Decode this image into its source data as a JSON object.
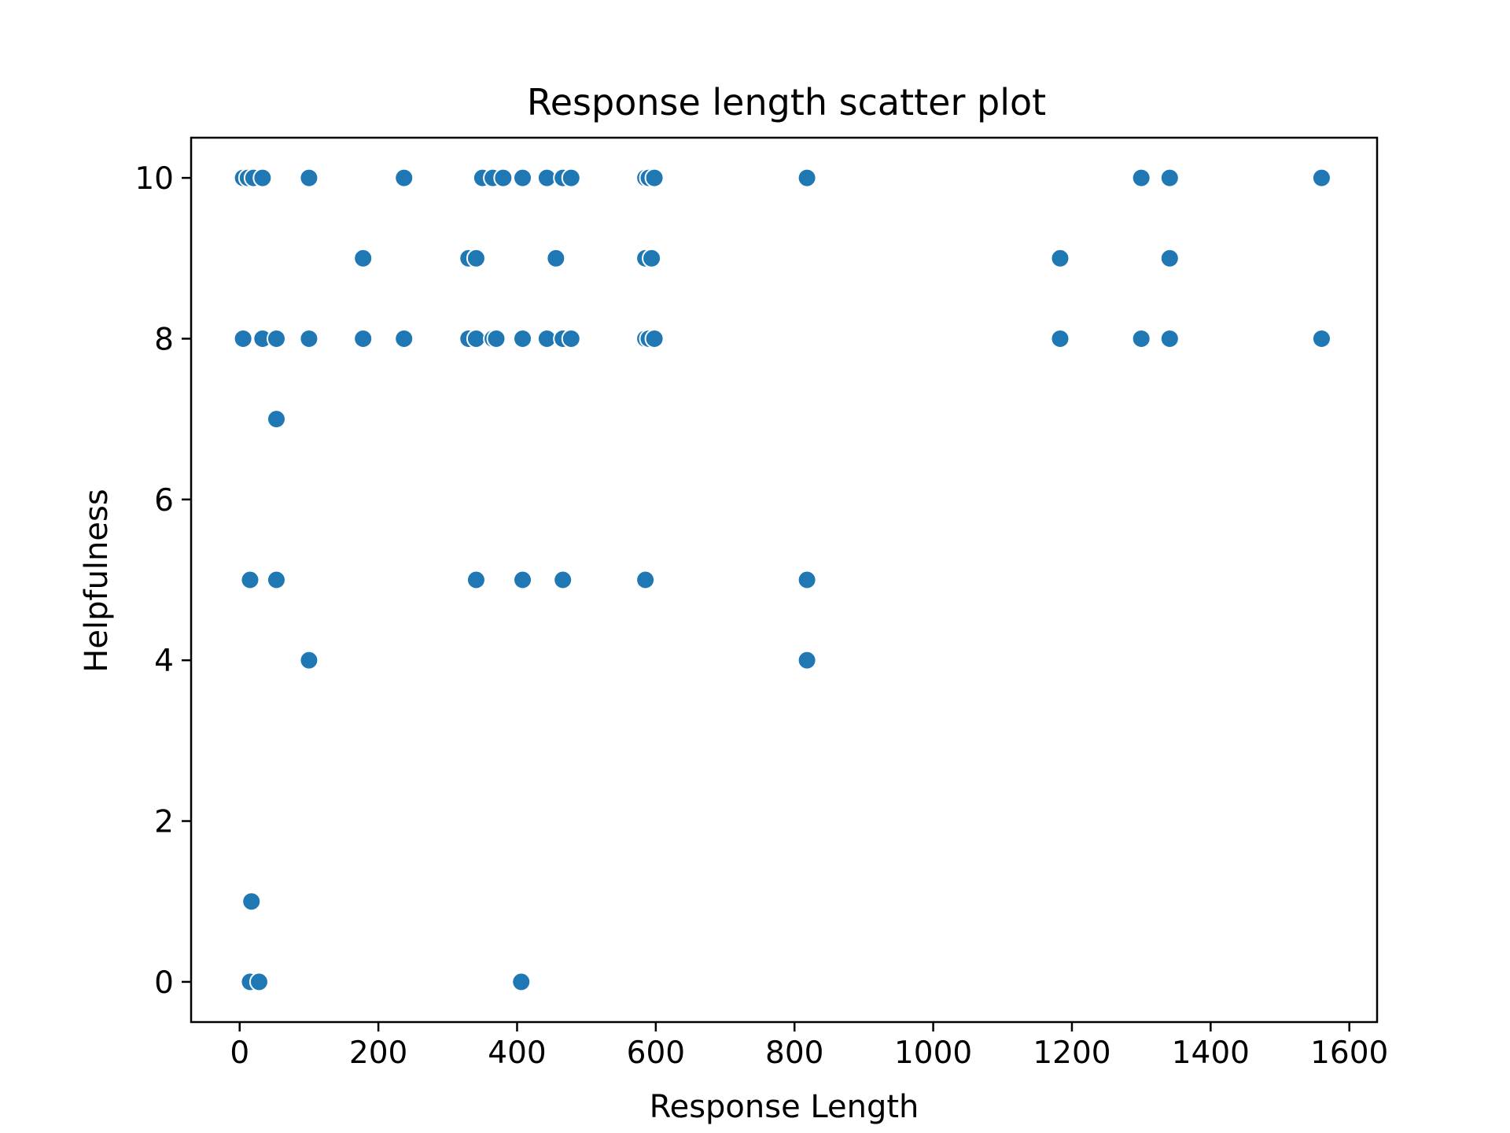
{
  "chart_data": {
    "type": "scatter",
    "title": "Response length scatter plot",
    "xlabel": "Response Length",
    "ylabel": "Helpfulness",
    "xlim": [
      -70,
      1640
    ],
    "ylim": [
      -0.5,
      10.5
    ],
    "xticks": [
      0,
      200,
      400,
      600,
      800,
      1000,
      1200,
      1400,
      1600
    ],
    "yticks": [
      0,
      2,
      4,
      6,
      8,
      10
    ],
    "grid": false,
    "legend": "none",
    "color": "#1f77b4",
    "points": [
      {
        "x": 5,
        "y": 10
      },
      {
        "x": 12,
        "y": 10
      },
      {
        "x": 20,
        "y": 10
      },
      {
        "x": 33,
        "y": 10
      },
      {
        "x": 100,
        "y": 10
      },
      {
        "x": 237,
        "y": 10
      },
      {
        "x": 350,
        "y": 10
      },
      {
        "x": 365,
        "y": 10
      },
      {
        "x": 380,
        "y": 10
      },
      {
        "x": 408,
        "y": 10
      },
      {
        "x": 443,
        "y": 10
      },
      {
        "x": 466,
        "y": 10
      },
      {
        "x": 478,
        "y": 10
      },
      {
        "x": 585,
        "y": 10
      },
      {
        "x": 590,
        "y": 10
      },
      {
        "x": 598,
        "y": 10
      },
      {
        "x": 818,
        "y": 10
      },
      {
        "x": 1300,
        "y": 10
      },
      {
        "x": 1341,
        "y": 10
      },
      {
        "x": 1560,
        "y": 10
      },
      {
        "x": 178,
        "y": 9
      },
      {
        "x": 330,
        "y": 9
      },
      {
        "x": 341,
        "y": 9
      },
      {
        "x": 456,
        "y": 9
      },
      {
        "x": 585,
        "y": 9
      },
      {
        "x": 594,
        "y": 9
      },
      {
        "x": 1183,
        "y": 9
      },
      {
        "x": 1341,
        "y": 9
      },
      {
        "x": 5,
        "y": 8
      },
      {
        "x": 33,
        "y": 8
      },
      {
        "x": 53,
        "y": 8
      },
      {
        "x": 100,
        "y": 8
      },
      {
        "x": 178,
        "y": 8
      },
      {
        "x": 237,
        "y": 8
      },
      {
        "x": 330,
        "y": 8
      },
      {
        "x": 341,
        "y": 8
      },
      {
        "x": 365,
        "y": 8
      },
      {
        "x": 370,
        "y": 8
      },
      {
        "x": 408,
        "y": 8
      },
      {
        "x": 443,
        "y": 8
      },
      {
        "x": 466,
        "y": 8
      },
      {
        "x": 478,
        "y": 8
      },
      {
        "x": 585,
        "y": 8
      },
      {
        "x": 590,
        "y": 8
      },
      {
        "x": 598,
        "y": 8
      },
      {
        "x": 1183,
        "y": 8
      },
      {
        "x": 1300,
        "y": 8
      },
      {
        "x": 1341,
        "y": 8
      },
      {
        "x": 1560,
        "y": 8
      },
      {
        "x": 53,
        "y": 7
      },
      {
        "x": 15,
        "y": 5
      },
      {
        "x": 53,
        "y": 5
      },
      {
        "x": 341,
        "y": 5
      },
      {
        "x": 408,
        "y": 5
      },
      {
        "x": 466,
        "y": 5
      },
      {
        "x": 585,
        "y": 5
      },
      {
        "x": 818,
        "y": 5
      },
      {
        "x": 100,
        "y": 4
      },
      {
        "x": 818,
        "y": 4
      },
      {
        "x": 17,
        "y": 1
      },
      {
        "x": 15,
        "y": 0
      },
      {
        "x": 28,
        "y": 0
      },
      {
        "x": 406,
        "y": 0
      }
    ]
  }
}
